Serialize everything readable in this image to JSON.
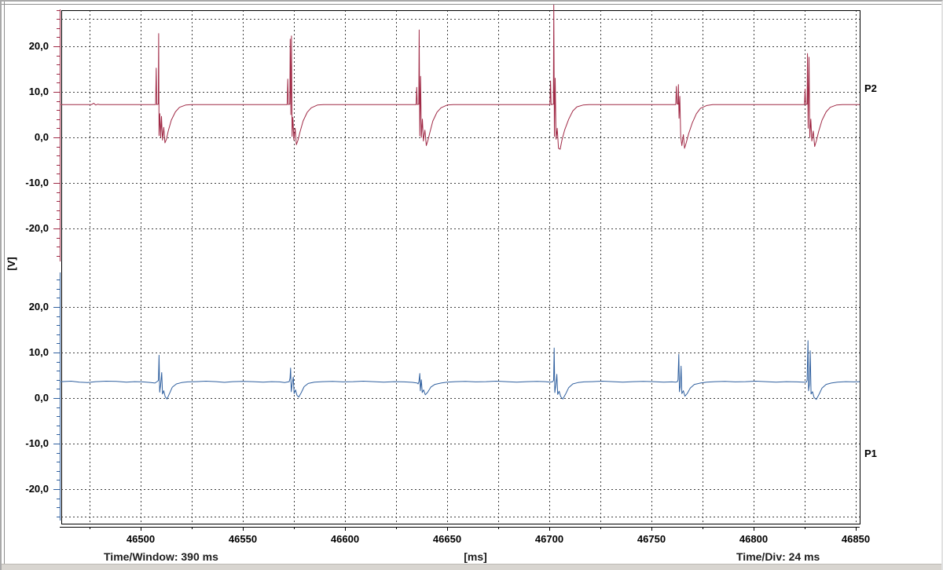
{
  "window": {
    "bg": "#ffffff",
    "frame_color": "#d8d5d0"
  },
  "footer": {
    "time_window": "Time/Window: 390 ms",
    "x_unit": "[ms]",
    "time_div": "Time/Div: 24 ms"
  },
  "y_axis": {
    "unit": "[V]",
    "tick_labels": [
      "20,0",
      "10,0",
      "0,0",
      "-10,0",
      "-20,0"
    ],
    "tick_values": [
      20,
      10,
      0,
      -10,
      -20
    ]
  },
  "x_axis": {
    "tick_labels": [
      "46500",
      "46550",
      "46600",
      "46650",
      "46700",
      "46750",
      "46800",
      "46850"
    ],
    "tick_values": [
      46500,
      46550,
      46600,
      46650,
      46700,
      46750,
      46800,
      46850
    ],
    "minor_step_ms": 25
  },
  "channels": {
    "p2": {
      "label": "P2",
      "color": "#a02a46",
      "baseline_v": 7.2
    },
    "p1": {
      "label": "P1",
      "color": "#30609f",
      "baseline_v": 3.6
    }
  },
  "colors": {
    "grid": "#3f3f3f",
    "plot_border": "#000000",
    "axis_line": "#000000",
    "text": "#000000"
  },
  "chart_data": {
    "type": "line",
    "title": "",
    "xlabel": "[ms]",
    "ylabel": "[V]",
    "x_range_ms": [
      46461,
      46852
    ],
    "y_range_v_per_channel": [
      -26,
      26
    ],
    "grid": "dashed",
    "time_window_ms": 390,
    "time_per_div_ms": 24,
    "series": [
      {
        "name": "P2",
        "color": "#a02a46",
        "baseline_v": 7.2,
        "pulse_times_ms": [
          46508.8,
          46573.2,
          46636.3,
          46702.2,
          46763.2,
          46826.4
        ],
        "pulse_peaks_v": [
          22.8,
          22.3,
          23.6,
          29.2,
          11.6,
          18.4
        ],
        "points": [
          [
            46461,
            7.2
          ],
          [
            46476,
            7.2
          ],
          [
            46477,
            7.5
          ],
          [
            46478,
            7.1
          ],
          [
            46479,
            7.3
          ],
          [
            46480,
            7.2
          ],
          [
            46507.3,
            7.2
          ],
          [
            46507.6,
            15.2
          ],
          [
            46507.9,
            7.2
          ],
          [
            46508.6,
            7.3
          ],
          [
            46508.8,
            22.8
          ],
          [
            46509.0,
            0.4
          ],
          [
            46509.4,
            5.2
          ],
          [
            46509.8,
            0.0
          ],
          [
            46510.2,
            4.6
          ],
          [
            46510.7,
            -0.6
          ],
          [
            46511.3,
            2.2
          ],
          [
            46511.9,
            -1.2
          ],
          [
            46512.6,
            -0.4
          ],
          [
            46513.5,
            1.4
          ],
          [
            46515,
            3.8
          ],
          [
            46517,
            5.6
          ],
          [
            46519,
            6.6
          ],
          [
            46522,
            7.1
          ],
          [
            46525,
            7.2
          ],
          [
            46571.7,
            7.2
          ],
          [
            46572.0,
            12.8
          ],
          [
            46572.3,
            7.2
          ],
          [
            46573.0,
            7.3
          ],
          [
            46573.2,
            21.6
          ],
          [
            46573.5,
            5.0
          ],
          [
            46573.8,
            22.3
          ],
          [
            46574.1,
            0.2
          ],
          [
            46574.5,
            4.4
          ],
          [
            46575.0,
            -0.6
          ],
          [
            46575.6,
            2.0
          ],
          [
            46576.2,
            -1.6
          ],
          [
            46577.0,
            -0.6
          ],
          [
            46578.0,
            1.2
          ],
          [
            46579.5,
            3.6
          ],
          [
            46581.5,
            5.5
          ],
          [
            46583.5,
            6.5
          ],
          [
            46586.5,
            7.1
          ],
          [
            46589.5,
            7.2
          ],
          [
            46634.8,
            7.2
          ],
          [
            46635.1,
            11.0
          ],
          [
            46635.4,
            7.2
          ],
          [
            46636.1,
            7.3
          ],
          [
            46636.3,
            23.6
          ],
          [
            46636.6,
            0.3
          ],
          [
            46637.0,
            13.4
          ],
          [
            46637.4,
            0.0
          ],
          [
            46637.9,
            4.0
          ],
          [
            46638.4,
            -0.8
          ],
          [
            46639.1,
            1.6
          ],
          [
            46639.8,
            -1.8
          ],
          [
            46640.6,
            -0.6
          ],
          [
            46641.6,
            1.2
          ],
          [
            46643,
            3.6
          ],
          [
            46645,
            5.5
          ],
          [
            46647,
            6.5
          ],
          [
            46650,
            7.1
          ],
          [
            46653,
            7.2
          ],
          [
            46700.3,
            7.2
          ],
          [
            46700.6,
            12.4
          ],
          [
            46700.9,
            7.2
          ],
          [
            46702.0,
            7.3
          ],
          [
            46702.2,
            29.2
          ],
          [
            46702.5,
            0.2
          ],
          [
            46702.9,
            13.0
          ],
          [
            46703.3,
            -0.4
          ],
          [
            46703.9,
            2.0
          ],
          [
            46704.5,
            -2.4
          ],
          [
            46705.3,
            -2.6
          ],
          [
            46706.2,
            -0.6
          ],
          [
            46707.5,
            1.6
          ],
          [
            46709.5,
            4.0
          ],
          [
            46711.5,
            5.8
          ],
          [
            46713.5,
            6.7
          ],
          [
            46716.5,
            7.1
          ],
          [
            46719.5,
            7.2
          ],
          [
            46761.9,
            7.2
          ],
          [
            46762.2,
            11.2
          ],
          [
            46762.5,
            7.4
          ],
          [
            46763.0,
            7.3
          ],
          [
            46763.2,
            11.6
          ],
          [
            46763.5,
            4.2
          ],
          [
            46763.9,
            9.0
          ],
          [
            46764.3,
            0.2
          ],
          [
            46764.9,
            -1.8
          ],
          [
            46765.6,
            0.6
          ],
          [
            46766.2,
            -2.4
          ],
          [
            46767.0,
            -1.2
          ],
          [
            46768.2,
            0.8
          ],
          [
            46770,
            3.2
          ],
          [
            46772,
            5.2
          ],
          [
            46774,
            6.4
          ],
          [
            46777,
            7.0
          ],
          [
            46780,
            7.2
          ],
          [
            46824.9,
            7.2
          ],
          [
            46825.2,
            10.6
          ],
          [
            46825.5,
            7.2
          ],
          [
            46826.2,
            7.3
          ],
          [
            46826.4,
            18.4
          ],
          [
            46826.7,
            2.0
          ],
          [
            46827.1,
            17.6
          ],
          [
            46827.5,
            0.0
          ],
          [
            46828.0,
            4.0
          ],
          [
            46828.5,
            -0.8
          ],
          [
            46829.2,
            1.4
          ],
          [
            46829.9,
            -2.0
          ],
          [
            46830.8,
            -0.6
          ],
          [
            46831.9,
            1.4
          ],
          [
            46833.5,
            3.8
          ],
          [
            46835.5,
            5.6
          ],
          [
            46837.5,
            6.6
          ],
          [
            46840.5,
            7.1
          ],
          [
            46843.5,
            7.2
          ],
          [
            46852,
            7.2
          ]
        ]
      },
      {
        "name": "P1",
        "color": "#30609f",
        "baseline_v": 3.6,
        "pulse_times_ms": [
          46509.0,
          46573.4,
          46636.6,
          46702.4,
          46763.4,
          46826.6
        ],
        "pulse_peaks_v": [
          9.4,
          6.6,
          5.4,
          11.0,
          9.6,
          12.6
        ],
        "points": [
          [
            46461,
            3.6
          ],
          [
            46466,
            3.7
          ],
          [
            46470,
            3.5
          ],
          [
            46474,
            3.4
          ],
          [
            46478,
            3.6
          ],
          [
            46483,
            3.7
          ],
          [
            46488,
            3.65
          ],
          [
            46493,
            3.5
          ],
          [
            46497,
            3.6
          ],
          [
            46501,
            3.55
          ],
          [
            46505,
            3.4
          ],
          [
            46507,
            3.3
          ],
          [
            46508.3,
            3.7
          ],
          [
            46508.7,
            3.9
          ],
          [
            46509.0,
            9.4
          ],
          [
            46509.3,
            1.3
          ],
          [
            46509.8,
            3.0
          ],
          [
            46510.3,
            5.6
          ],
          [
            46510.7,
            0.9
          ],
          [
            46511.3,
            1.6
          ],
          [
            46512.0,
            0.3
          ],
          [
            46512.9,
            -0.2
          ],
          [
            46514,
            0.9
          ],
          [
            46515.5,
            2.4
          ],
          [
            46517.5,
            3.1
          ],
          [
            46520,
            3.4
          ],
          [
            46523,
            3.55
          ],
          [
            46527,
            3.6
          ],
          [
            46532,
            3.7
          ],
          [
            46537,
            3.6
          ],
          [
            46541,
            3.45
          ],
          [
            46545,
            3.6
          ],
          [
            46550,
            3.65
          ],
          [
            46555,
            3.6
          ],
          [
            46560,
            3.5
          ],
          [
            46564,
            3.6
          ],
          [
            46568,
            3.55
          ],
          [
            46570.5,
            3.4
          ],
          [
            46572.7,
            3.6
          ],
          [
            46573.1,
            4.4
          ],
          [
            46573.4,
            6.6
          ],
          [
            46573.7,
            1.4
          ],
          [
            46574.2,
            3.2
          ],
          [
            46574.7,
            4.6
          ],
          [
            46575.1,
            1.0
          ],
          [
            46575.8,
            1.8
          ],
          [
            46576.5,
            0.6
          ],
          [
            46577.4,
            0.2
          ],
          [
            46578.6,
            1.2
          ],
          [
            46580,
            2.5
          ],
          [
            46582,
            3.2
          ],
          [
            46585,
            3.5
          ],
          [
            46589,
            3.6
          ],
          [
            46594,
            3.65
          ],
          [
            46599,
            3.55
          ],
          [
            46604,
            3.6
          ],
          [
            46609,
            3.7
          ],
          [
            46614,
            3.6
          ],
          [
            46619,
            3.5
          ],
          [
            46624,
            3.6
          ],
          [
            46629,
            3.55
          ],
          [
            46633,
            3.45
          ],
          [
            46635.4,
            3.3
          ],
          [
            46635.8,
            3.1
          ],
          [
            46636.2,
            3.6
          ],
          [
            46636.6,
            5.4
          ],
          [
            46636.9,
            1.6
          ],
          [
            46637.4,
            4.0
          ],
          [
            46637.8,
            1.2
          ],
          [
            46638.5,
            1.8
          ],
          [
            46639.3,
            0.7
          ],
          [
            46640.5,
            1.3
          ],
          [
            46642,
            2.4
          ],
          [
            46644,
            3.0
          ],
          [
            46647,
            3.3
          ],
          [
            46650,
            3.5
          ],
          [
            46654,
            3.6
          ],
          [
            46659,
            3.65
          ],
          [
            46664,
            3.55
          ],
          [
            46669,
            3.6
          ],
          [
            46674,
            3.7
          ],
          [
            46679,
            3.6
          ],
          [
            46684,
            3.5
          ],
          [
            46689,
            3.6
          ],
          [
            46694,
            3.65
          ],
          [
            46698,
            3.6
          ],
          [
            46700.5,
            3.5
          ],
          [
            46701.7,
            3.6
          ],
          [
            46702.1,
            3.9
          ],
          [
            46702.4,
            11.0
          ],
          [
            46702.7,
            1.2
          ],
          [
            46703.2,
            2.8
          ],
          [
            46703.7,
            5.2
          ],
          [
            46704.1,
            0.8
          ],
          [
            46704.8,
            1.5
          ],
          [
            46705.6,
            0.3
          ],
          [
            46706.6,
            -0.2
          ],
          [
            46708,
            0.9
          ],
          [
            46709.5,
            2.3
          ],
          [
            46711.5,
            3.1
          ],
          [
            46714,
            3.4
          ],
          [
            46717,
            3.55
          ],
          [
            46721,
            3.6
          ],
          [
            46726,
            3.7
          ],
          [
            46731,
            3.6
          ],
          [
            46736,
            3.5
          ],
          [
            46741,
            3.6
          ],
          [
            46746,
            3.65
          ],
          [
            46751,
            3.6
          ],
          [
            46756,
            3.5
          ],
          [
            46760,
            3.55
          ],
          [
            46762,
            3.5
          ],
          [
            46762.7,
            3.6
          ],
          [
            46763.0,
            4.0
          ],
          [
            46763.4,
            9.6
          ],
          [
            46763.7,
            1.4
          ],
          [
            46764.1,
            2.6
          ],
          [
            46764.5,
            7.0
          ],
          [
            46764.9,
            1.0
          ],
          [
            46765.6,
            1.6
          ],
          [
            46766.4,
            0.4
          ],
          [
            46767.5,
            1.0
          ],
          [
            46769,
            2.2
          ],
          [
            46771,
            3.0
          ],
          [
            46774,
            3.3
          ],
          [
            46777,
            3.5
          ],
          [
            46781,
            3.6
          ],
          [
            46786,
            3.65
          ],
          [
            46791,
            3.55
          ],
          [
            46796,
            3.6
          ],
          [
            46801,
            3.7
          ],
          [
            46806,
            3.6
          ],
          [
            46811,
            3.5
          ],
          [
            46816,
            3.6
          ],
          [
            46821,
            3.55
          ],
          [
            46824.5,
            3.5
          ],
          [
            46825.8,
            3.5
          ],
          [
            46826.2,
            3.9
          ],
          [
            46826.6,
            12.6
          ],
          [
            46826.9,
            1.6
          ],
          [
            46827.3,
            3.0
          ],
          [
            46827.7,
            10.4
          ],
          [
            46828.1,
            0.9
          ],
          [
            46828.8,
            1.4
          ],
          [
            46829.6,
            0.1
          ],
          [
            46830.7,
            -0.3
          ],
          [
            46832,
            0.8
          ],
          [
            46833.5,
            2.2
          ],
          [
            46835.5,
            3.0
          ],
          [
            46838,
            3.3
          ],
          [
            46841,
            3.5
          ],
          [
            46845,
            3.6
          ],
          [
            46849,
            3.55
          ],
          [
            46852,
            3.6
          ]
        ]
      }
    ]
  }
}
